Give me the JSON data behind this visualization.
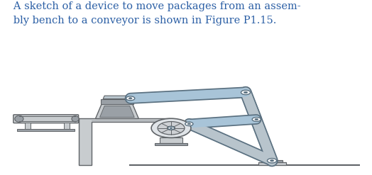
{
  "title_text": "   A sketch of a device to move packages from an assem-\n   bly bench to a conveyor is shown in Figure P1.15.",
  "title_color": "#2b5fa5",
  "title_fontsize": 10.5,
  "bg_color": "#ffffff",
  "link_color": "#a8c4d8",
  "link_edge": "#5a7080",
  "gray_light": "#c8cccf",
  "gray_mid": "#9aa0a6",
  "gray_dark": "#606468",
  "gray_struct": "#a0aeb8",
  "gray_structl": "#b8c4cc"
}
